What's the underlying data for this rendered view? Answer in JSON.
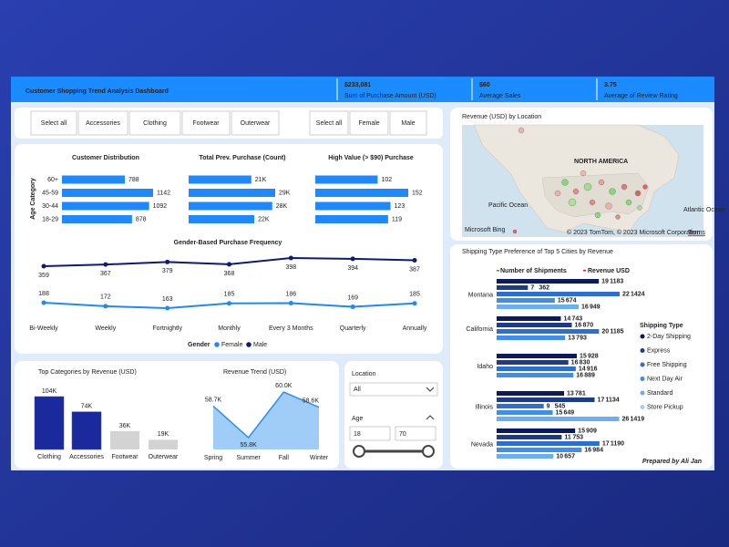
{
  "header": {
    "title": "Customer Shopping Trend Analysis Dashboard"
  },
  "kpis": [
    {
      "value": "$233,081",
      "label": "Sum of Purchase Amount (USD)"
    },
    {
      "value": "$60",
      "label": "Average Sales"
    },
    {
      "value": "3.75",
      "label": "Average of Review Rating"
    }
  ],
  "filters": {
    "category": [
      "Select all",
      "Accessories",
      "Clothing",
      "Footwear",
      "Outerwear"
    ],
    "gender": [
      "Select all",
      "Female",
      "Male"
    ]
  },
  "chart_data": [
    {
      "type": "hbar",
      "title": "Customer Distribution",
      "y_label": "Age Category",
      "categories": [
        "60+",
        "45-59",
        "30-44",
        "18-29"
      ],
      "values": [
        788,
        1142,
        1092,
        878
      ],
      "color": "#1e88ff"
    },
    {
      "type": "hbar",
      "title": "Total Prev. Purchase (Count)",
      "values": [
        21000,
        29000,
        28000,
        22000
      ],
      "value_labels": [
        "21K",
        "29K",
        "28K",
        "22K"
      ],
      "color": "#1e88ff"
    },
    {
      "type": "hbar",
      "title": "High Value (> $90) Purchase",
      "values": [
        102,
        152,
        123,
        119
      ],
      "color": "#1e88ff"
    },
    {
      "type": "line",
      "title": "Gender-Based Purchase Frequency",
      "legend_title": "Gender",
      "categories": [
        "Bi-Weekly",
        "Weekly",
        "Fortnightly",
        "Monthly",
        "Every 3 Months",
        "Quarterly",
        "Annually"
      ],
      "series": [
        {
          "name": "Female",
          "color": "#1e88ff",
          "values": [
            188,
            172,
            163,
            185,
            186,
            169,
            185
          ]
        },
        {
          "name": "Male",
          "color": "#0d1a7a",
          "values": [
            359,
            367,
            379,
            368,
            398,
            394,
            387
          ]
        }
      ]
    },
    {
      "type": "bar",
      "title": "Top Categories by Revenue (USD)",
      "categories": [
        "Clothing",
        "Accessories",
        "Footwear",
        "Outerwear"
      ],
      "values": [
        104000,
        74000,
        36000,
        19000
      ],
      "value_labels": [
        "104K",
        "74K",
        "36K",
        "19K"
      ],
      "colors": [
        "#1a2a9c",
        "#1a2a9c",
        "#d3d3d3",
        "#d3d3d3"
      ]
    },
    {
      "type": "area",
      "title": "Revenue Trend (USD)",
      "categories": [
        "Spring",
        "Summer",
        "Fall",
        "Winter"
      ],
      "values": [
        58700,
        55800,
        60000,
        58600
      ],
      "value_labels": [
        "58.7K",
        "55.8K",
        "60.0K",
        "58.6K"
      ],
      "color": "#2b8fef"
    },
    {
      "type": "grouped_hbar",
      "title": "Shipping Type Preference of Top 5 Cities by Revenue",
      "measures": [
        "Number of Shipments",
        "Revenue USD"
      ],
      "legend_title": "Shipping Type",
      "shipping_types": [
        {
          "name": "2-Day Shipping",
          "color": "#0b1a5c"
        },
        {
          "name": "Express",
          "color": "#1e3a8a"
        },
        {
          "name": "Free Shipping",
          "color": "#2b6fd6"
        },
        {
          "name": "Next Day Air",
          "color": "#3d8ef0"
        },
        {
          "name": "Standard",
          "color": "#6aaef5"
        },
        {
          "name": "Store Pickup",
          "color": "#a9cdf7"
        }
      ],
      "cities": [
        {
          "name": "Montana",
          "shipments": [
            19,
            7,
            22,
            15,
            16
          ],
          "revenue": [
            1183,
            362,
            1424,
            674,
            949
          ]
        },
        {
          "name": "California",
          "shipments": [
            14,
            16,
            20,
            13
          ],
          "revenue": [
            743,
            870,
            1185,
            793
          ]
        },
        {
          "name": "Idaho",
          "shipments": [
            15,
            16,
            14,
            16
          ],
          "revenue": [
            928,
            830,
            916,
            889
          ]
        },
        {
          "name": "Illinois",
          "shipments": [
            13,
            17,
            9,
            15,
            26
          ],
          "revenue": [
            781,
            1134,
            545,
            649,
            1419
          ]
        },
        {
          "name": "Nevada",
          "shipments": [
            15,
            11,
            17,
            16,
            10
          ],
          "revenue": [
            909,
            753,
            1190,
            984,
            657
          ]
        }
      ]
    }
  ],
  "map": {
    "title": "Revenue (USD) by Location",
    "region": "NORTH AMERICA",
    "oceans": [
      "Pacific Ocean",
      "Atlantic Ocean"
    ],
    "provider": "Microsoft Bing",
    "attribution": "© 2023 TomTom, © 2023 Microsoft Corporation",
    "terms": "Terms"
  },
  "slicer": {
    "location_label": "Location",
    "location_value": "All",
    "age_label": "Age",
    "age_min": "18",
    "age_max": "70"
  },
  "footer": "Prepared by Ali Jan"
}
